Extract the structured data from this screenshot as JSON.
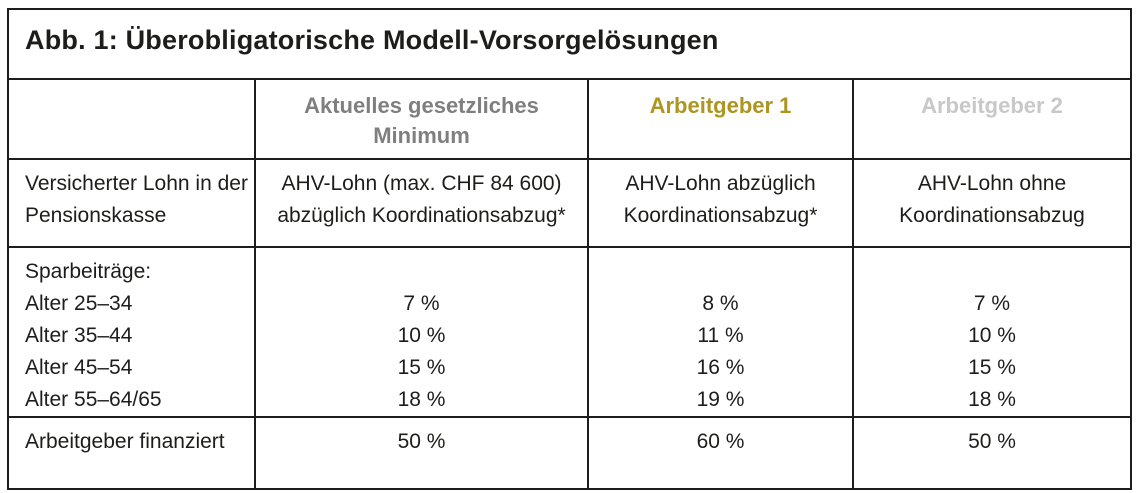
{
  "figure": {
    "title": "Abb. 1: Überobligatorische Modell-Vorsorgelösungen"
  },
  "header": {
    "minimum": "Aktuelles gesetzliches Minimum",
    "employer1": "Arbeitgeber 1",
    "employer2": "Arbeitgeber 2"
  },
  "insured_salary": {
    "label": "Versicherter Lohn in der Pensionskasse",
    "minimum": "AHV-Lohn (max. CHF 84 600) abzüglich Koordinationsabzug*",
    "employer1": "AHV-Lohn abzüglich Koordinationsabzug*",
    "employer2": "AHV-Lohn ohne Koordinationsabzug"
  },
  "savings_contributions": {
    "label": "Sparbeiträge:",
    "age_rows": [
      "Alter 25–34",
      "Alter 35–44",
      "Alter 45–54",
      "Alter 55–64/65"
    ],
    "minimum": [
      "7 %",
      "10 %",
      "15 %",
      "18 %"
    ],
    "employer1": [
      "8 %",
      "11 %",
      "16 %",
      "19 %"
    ],
    "employer2": [
      "7 %",
      "10 %",
      "15 %",
      "18 %"
    ]
  },
  "employer_financed": {
    "label": "Arbeitgeber finanziert",
    "minimum": "50 %",
    "employer1": "60 %",
    "employer2": "50 %"
  },
  "colors": {
    "minimum_header_gray": "#7f7f7f",
    "employer1_gold": "#ac9620",
    "employer2_light_gray": "#c8c8c8",
    "border_black": "#1d1d1b",
    "text_black": "#1d1d1b",
    "background_white": "#ffffff"
  }
}
